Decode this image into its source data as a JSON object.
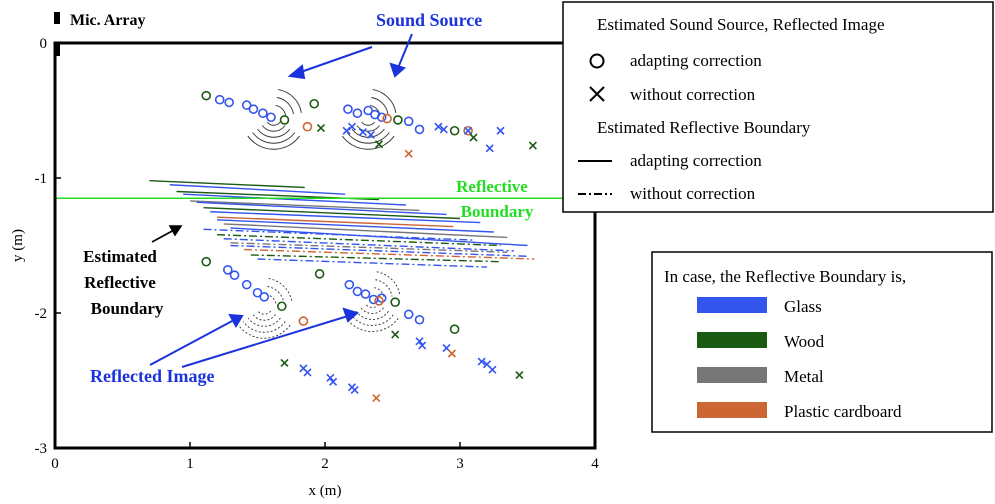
{
  "chart_data": {
    "type": "scatter",
    "title": "",
    "xlabel": "x (m)",
    "ylabel": "y (m)",
    "xlim": [
      0,
      4
    ],
    "ylim": [
      -3,
      0
    ],
    "x_ticks": [
      0,
      1,
      2,
      3,
      4
    ],
    "x_tick_labels": [
      "0",
      "1",
      "2",
      "3",
      "4"
    ],
    "y_ticks": [
      0,
      -1,
      -2,
      -3
    ],
    "y_tick_labels": [
      "0",
      "-1",
      "-2",
      "-3"
    ],
    "grid": false,
    "reflective_boundary_y": -1.15,
    "mic_array": {
      "label": "Mic. Array",
      "x": 0,
      "y": 0
    },
    "annotations": {
      "sound_source": "Sound Source",
      "reflective_boundary": [
        "Reflective",
        "Boundary"
      ],
      "estimated_reflective_boundary": [
        "Estimated",
        "Reflective",
        "Boundary"
      ],
      "reflected_image": "Reflected Image"
    },
    "legend_markers": {
      "title": "Estimated Sound Source,  Reflected Image",
      "circle_label": "adapting correction",
      "cross_label": "without correction",
      "boundary_title": "Estimated Reflective Boundary",
      "solid_label": "adapting correction",
      "dashdot_label": "without correction"
    },
    "legend_materials": {
      "title": "In case, the Reflective Boundary is,",
      "items": [
        {
          "label": "Glass",
          "color": "#3355ee"
        },
        {
          "label": "Wood",
          "color": "#1a5a12"
        },
        {
          "label": "Metal",
          "color": "#777777"
        },
        {
          "label": "Plastic cardboard",
          "color": "#cc6633"
        }
      ]
    },
    "colors": {
      "glass": "#3355ee",
      "wood": "#1a5a12",
      "metal": "#777777",
      "plastic": "#cc6633",
      "boundary": "#22dd22",
      "annotation": "#1a33dd"
    },
    "sources": [
      {
        "x": 1.62,
        "y": -0.55
      },
      {
        "x": 2.32,
        "y": -0.55
      }
    ],
    "images": [
      {
        "x": 1.55,
        "y": -1.95
      },
      {
        "x": 2.35,
        "y": -1.9
      }
    ],
    "points": [
      {
        "material": "wood",
        "marker": "circle",
        "x": 1.12,
        "y": -0.39
      },
      {
        "material": "glass",
        "marker": "circle",
        "x": 1.22,
        "y": -0.42
      },
      {
        "material": "glass",
        "marker": "circle",
        "x": 1.29,
        "y": -0.44
      },
      {
        "material": "glass",
        "marker": "circle",
        "x": 1.42,
        "y": -0.46
      },
      {
        "material": "glass",
        "marker": "circle",
        "x": 1.47,
        "y": -0.49
      },
      {
        "material": "glass",
        "marker": "circle",
        "x": 1.54,
        "y": -0.52
      },
      {
        "material": "glass",
        "marker": "circle",
        "x": 1.6,
        "y": -0.55
      },
      {
        "material": "wood",
        "marker": "circle",
        "x": 1.7,
        "y": -0.57
      },
      {
        "material": "wood",
        "marker": "circle",
        "x": 1.92,
        "y": -0.45
      },
      {
        "material": "plastic",
        "marker": "circle",
        "x": 1.87,
        "y": -0.62
      },
      {
        "material": "glass",
        "marker": "circle",
        "x": 2.17,
        "y": -0.49
      },
      {
        "material": "glass",
        "marker": "circle",
        "x": 2.24,
        "y": -0.52
      },
      {
        "material": "glass",
        "marker": "circle",
        "x": 2.32,
        "y": -0.5
      },
      {
        "material": "glass",
        "marker": "circle",
        "x": 2.37,
        "y": -0.53
      },
      {
        "material": "glass",
        "marker": "circle",
        "x": 2.42,
        "y": -0.55
      },
      {
        "material": "plastic",
        "marker": "circle",
        "x": 2.46,
        "y": -0.56
      },
      {
        "material": "wood",
        "marker": "circle",
        "x": 2.54,
        "y": -0.57
      },
      {
        "material": "glass",
        "marker": "circle",
        "x": 2.62,
        "y": -0.58
      },
      {
        "material": "glass",
        "marker": "circle",
        "x": 2.7,
        "y": -0.64
      },
      {
        "material": "wood",
        "marker": "circle",
        "x": 2.96,
        "y": -0.65
      },
      {
        "material": "plastic",
        "marker": "circle",
        "x": 3.06,
        "y": -0.65
      },
      {
        "material": "wood",
        "marker": "cross",
        "x": 1.97,
        "y": -0.63
      },
      {
        "material": "glass",
        "marker": "cross",
        "x": 2.16,
        "y": -0.65
      },
      {
        "material": "glass",
        "marker": "cross",
        "x": 2.2,
        "y": -0.62
      },
      {
        "material": "glass",
        "marker": "cross",
        "x": 2.28,
        "y": -0.66
      },
      {
        "material": "glass",
        "marker": "cross",
        "x": 2.34,
        "y": -0.68
      },
      {
        "material": "wood",
        "marker": "cross",
        "x": 2.4,
        "y": -0.75
      },
      {
        "material": "plastic",
        "marker": "cross",
        "x": 2.62,
        "y": -0.82
      },
      {
        "material": "glass",
        "marker": "cross",
        "x": 2.84,
        "y": -0.62
      },
      {
        "material": "glass",
        "marker": "cross",
        "x": 2.88,
        "y": -0.64
      },
      {
        "material": "glass",
        "marker": "cross",
        "x": 3.06,
        "y": -0.65
      },
      {
        "material": "wood",
        "marker": "cross",
        "x": 3.1,
        "y": -0.7
      },
      {
        "material": "glass",
        "marker": "cross",
        "x": 3.22,
        "y": -0.78
      },
      {
        "material": "glass",
        "marker": "cross",
        "x": 3.3,
        "y": -0.65
      },
      {
        "material": "wood",
        "marker": "cross",
        "x": 3.54,
        "y": -0.76
      },
      {
        "material": "wood",
        "marker": "circle",
        "x": 1.12,
        "y": -1.62
      },
      {
        "material": "glass",
        "marker": "circle",
        "x": 1.28,
        "y": -1.68
      },
      {
        "material": "glass",
        "marker": "circle",
        "x": 1.33,
        "y": -1.72
      },
      {
        "material": "glass",
        "marker": "circle",
        "x": 1.42,
        "y": -1.79
      },
      {
        "material": "glass",
        "marker": "circle",
        "x": 1.5,
        "y": -1.85
      },
      {
        "material": "glass",
        "marker": "circle",
        "x": 1.55,
        "y": -1.88
      },
      {
        "material": "wood",
        "marker": "circle",
        "x": 1.68,
        "y": -1.95
      },
      {
        "material": "wood",
        "marker": "circle",
        "x": 1.96,
        "y": -1.71
      },
      {
        "material": "plastic",
        "marker": "circle",
        "x": 1.84,
        "y": -2.06
      },
      {
        "material": "glass",
        "marker": "circle",
        "x": 2.18,
        "y": -1.79
      },
      {
        "material": "glass",
        "marker": "circle",
        "x": 2.24,
        "y": -1.84
      },
      {
        "material": "glass",
        "marker": "circle",
        "x": 2.3,
        "y": -1.86
      },
      {
        "material": "glass",
        "marker": "circle",
        "x": 2.36,
        "y": -1.9
      },
      {
        "material": "glass",
        "marker": "circle",
        "x": 2.42,
        "y": -1.89
      },
      {
        "material": "plastic",
        "marker": "circle",
        "x": 2.4,
        "y": -1.91
      },
      {
        "material": "wood",
        "marker": "circle",
        "x": 2.52,
        "y": -1.92
      },
      {
        "material": "glass",
        "marker": "circle",
        "x": 2.62,
        "y": -2.01
      },
      {
        "material": "glass",
        "marker": "circle",
        "x": 2.7,
        "y": -2.05
      },
      {
        "material": "wood",
        "marker": "circle",
        "x": 2.96,
        "y": -2.12
      },
      {
        "material": "wood",
        "marker": "cross",
        "x": 1.7,
        "y": -2.37
      },
      {
        "material": "glass",
        "marker": "cross",
        "x": 1.84,
        "y": -2.41
      },
      {
        "material": "glass",
        "marker": "cross",
        "x": 1.87,
        "y": -2.44
      },
      {
        "material": "glass",
        "marker": "cross",
        "x": 2.04,
        "y": -2.48
      },
      {
        "material": "glass",
        "marker": "cross",
        "x": 2.06,
        "y": -2.51
      },
      {
        "material": "glass",
        "marker": "cross",
        "x": 2.2,
        "y": -2.55
      },
      {
        "material": "glass",
        "marker": "cross",
        "x": 2.22,
        "y": -2.57
      },
      {
        "material": "plastic",
        "marker": "cross",
        "x": 2.38,
        "y": -2.63
      },
      {
        "material": "wood",
        "marker": "cross",
        "x": 2.52,
        "y": -2.16
      },
      {
        "material": "glass",
        "marker": "cross",
        "x": 2.7,
        "y": -2.21
      },
      {
        "material": "glass",
        "marker": "cross",
        "x": 2.72,
        "y": -2.24
      },
      {
        "material": "glass",
        "marker": "cross",
        "x": 2.9,
        "y": -2.26
      },
      {
        "material": "plastic",
        "marker": "cross",
        "x": 2.94,
        "y": -2.3
      },
      {
        "material": "glass",
        "marker": "cross",
        "x": 3.16,
        "y": -2.36
      },
      {
        "material": "glass",
        "marker": "cross",
        "x": 3.2,
        "y": -2.38
      },
      {
        "material": "glass",
        "marker": "cross",
        "x": 3.24,
        "y": -2.42
      },
      {
        "material": "wood",
        "marker": "cross",
        "x": 3.44,
        "y": -2.46
      }
    ],
    "boundaries": [
      {
        "material": "wood",
        "style": "solid",
        "x1": 0.7,
        "x2": 1.85,
        "y1": -1.02,
        "y2": -1.07
      },
      {
        "material": "glass",
        "style": "solid",
        "x1": 0.85,
        "x2": 2.15,
        "y1": -1.05,
        "y2": -1.12
      },
      {
        "material": "wood",
        "style": "solid",
        "x1": 0.9,
        "x2": 2.4,
        "y1": -1.1,
        "y2": -1.16
      },
      {
        "material": "glass",
        "style": "solid",
        "x1": 0.95,
        "x2": 2.6,
        "y1": -1.12,
        "y2": -1.2
      },
      {
        "material": "metal",
        "style": "solid",
        "x1": 1.0,
        "x2": 2.7,
        "y1": -1.17,
        "y2": -1.24
      },
      {
        "material": "glass",
        "style": "solid",
        "x1": 1.05,
        "x2": 2.9,
        "y1": -1.18,
        "y2": -1.27
      },
      {
        "material": "wood",
        "style": "solid",
        "x1": 1.1,
        "x2": 3.0,
        "y1": -1.22,
        "y2": -1.3
      },
      {
        "material": "glass",
        "style": "solid",
        "x1": 1.15,
        "x2": 3.15,
        "y1": -1.25,
        "y2": -1.33
      },
      {
        "material": "plastic",
        "style": "solid",
        "x1": 1.2,
        "x2": 2.95,
        "y1": -1.29,
        "y2": -1.36
      },
      {
        "material": "glass",
        "style": "solid",
        "x1": 1.2,
        "x2": 3.25,
        "y1": -1.31,
        "y2": -1.4
      },
      {
        "material": "metal",
        "style": "solid",
        "x1": 1.25,
        "x2": 3.35,
        "y1": -1.34,
        "y2": -1.44
      },
      {
        "material": "glass",
        "style": "solid",
        "x1": 1.3,
        "x2": 3.5,
        "y1": -1.37,
        "y2": -1.5
      },
      {
        "material": "glass",
        "style": "dashdot",
        "x1": 1.1,
        "x2": 3.1,
        "y1": -1.38,
        "y2": -1.46
      },
      {
        "material": "wood",
        "style": "dashdot",
        "x1": 1.2,
        "x2": 3.3,
        "y1": -1.42,
        "y2": -1.5
      },
      {
        "material": "glass",
        "style": "dashdot",
        "x1": 1.25,
        "x2": 3.4,
        "y1": -1.45,
        "y2": -1.54
      },
      {
        "material": "metal",
        "style": "dashdot",
        "x1": 1.3,
        "x2": 3.35,
        "y1": -1.48,
        "y2": -1.55
      },
      {
        "material": "glass",
        "style": "dashdot",
        "x1": 1.3,
        "x2": 3.5,
        "y1": -1.5,
        "y2": -1.58
      },
      {
        "material": "plastic",
        "style": "dashdot",
        "x1": 1.4,
        "x2": 3.55,
        "y1": -1.53,
        "y2": -1.6
      },
      {
        "material": "wood",
        "style": "dashdot",
        "x1": 1.45,
        "x2": 3.3,
        "y1": -1.57,
        "y2": -1.62
      },
      {
        "material": "glass",
        "style": "dashdot",
        "x1": 1.5,
        "x2": 3.2,
        "y1": -1.6,
        "y2": -1.66
      }
    ]
  }
}
